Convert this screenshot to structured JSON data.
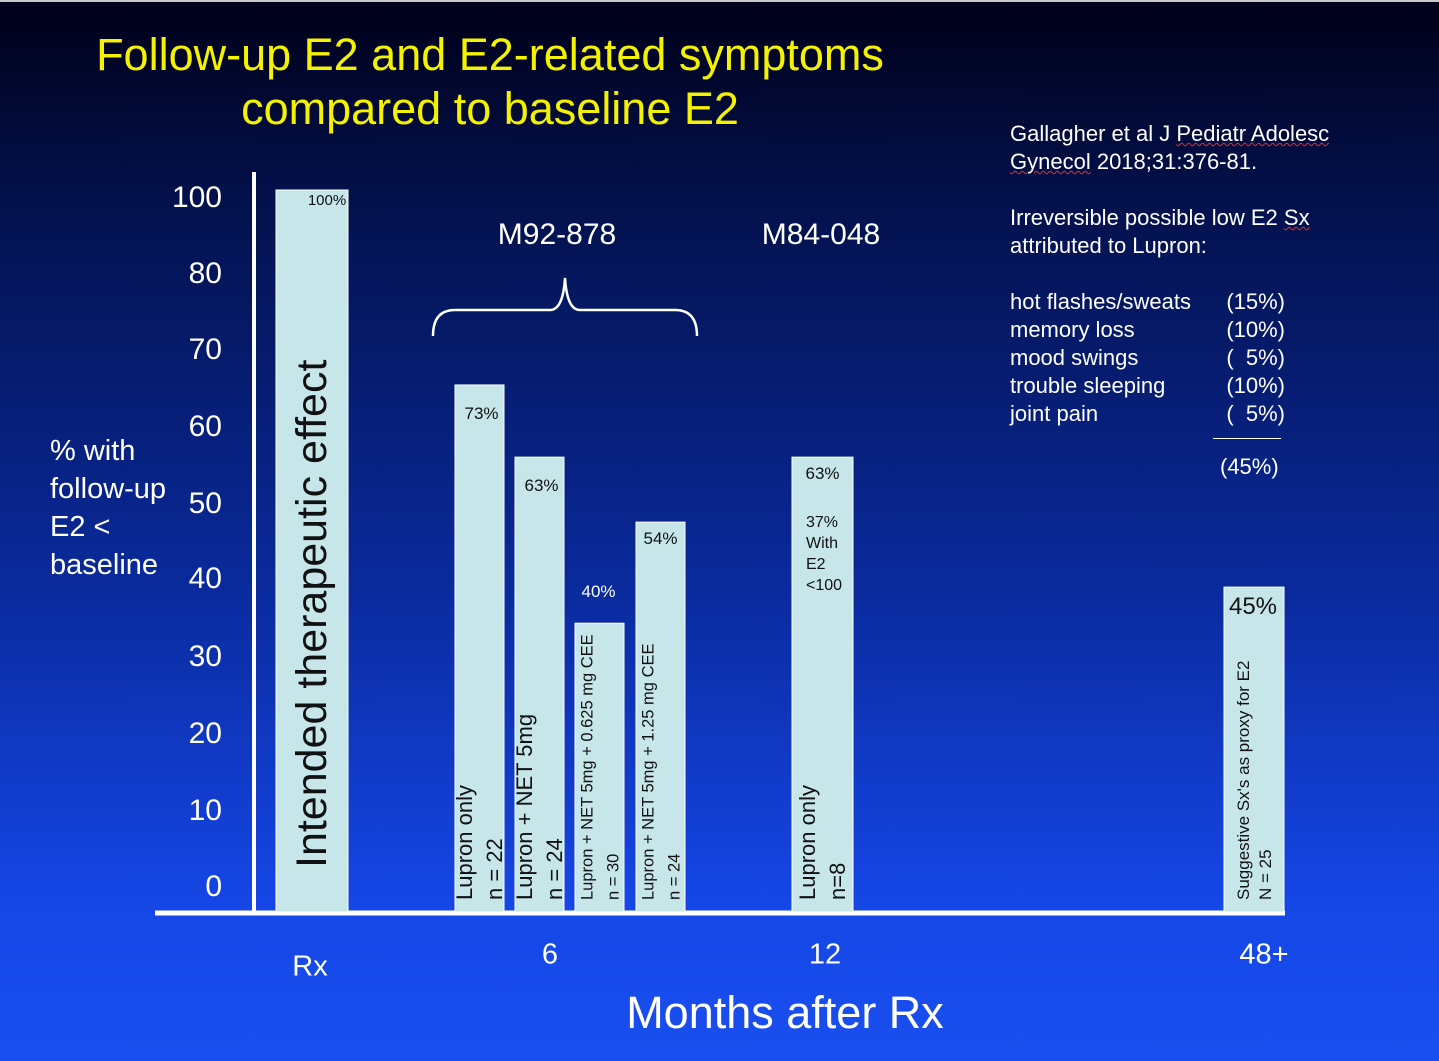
{
  "title_line1": "Follow-up E2 and E2-related symptoms",
  "title_line2": "compared to baseline E2",
  "reference": {
    "line1_pre": "Gallagher et al J ",
    "line1_wavy": "Pediatr Adolesc",
    "line2_wavy": "Gynecol",
    "line2_post": " 2018;31:376-81.",
    "line3_pre": "Irreversible possible low E2 ",
    "line3_wavy": "Sx",
    "line4": "attributed to Lupron:"
  },
  "symptoms": [
    {
      "name": "hot flashes/sweats",
      "pct": "(15%)"
    },
    {
      "name": "memory loss",
      "pct": "(10%)"
    },
    {
      "name": "mood swings",
      "pct": "(  5%)"
    },
    {
      "name": "trouble sleeping",
      "pct": "(10%)"
    },
    {
      "name": "joint pain",
      "pct": "(  5%)"
    }
  ],
  "symptoms_total": "(45%)",
  "ylabel": "% with follow-up E2 < baseline",
  "xlabel": "Months after Rx",
  "colors": {
    "title": "#f5f200",
    "bar_fill": "#c7e6ea",
    "text": "#ffffff",
    "bar_text": "#111111"
  },
  "chart_data": {
    "type": "bar",
    "ylabel": "% with follow-up E2 < baseline",
    "xlabel": "Months after Rx",
    "yticks": [
      0,
      10,
      20,
      30,
      40,
      50,
      60,
      70,
      80,
      100
    ],
    "xticks": [
      "Rx",
      "6",
      "12",
      "48+"
    ],
    "group_labels": [
      "M92-878",
      "M84-048"
    ],
    "bars": [
      {
        "x": "Rx",
        "value": 100,
        "data_label": "100%",
        "vertical_label": [
          "Intended therapeutic effect"
        ]
      },
      {
        "x": "6",
        "value": 73,
        "data_label": "73%",
        "vertical_label": [
          "Lupron only",
          "n = 22"
        ]
      },
      {
        "x": "6",
        "value": 63,
        "data_label": "63%",
        "vertical_label": [
          "Lupron + NET 5mg",
          "n = 24"
        ]
      },
      {
        "x": "6",
        "value": 40,
        "data_label": "40%",
        "vertical_label": [
          "Lupron + NET 5mg + 0.625 mg CEE",
          "n = 30"
        ]
      },
      {
        "x": "6",
        "value": 54,
        "data_label": "54%",
        "vertical_label": [
          "Lupron + NET 5mg + 1.25 mg CEE",
          "n = 24"
        ]
      },
      {
        "x": "12",
        "value": 63,
        "data_label": "63%",
        "note": [
          "37%",
          "With",
          "E2",
          "<100"
        ],
        "vertical_label": [
          "Lupron only",
          "n=8"
        ]
      },
      {
        "x": "48+",
        "value": 45,
        "data_label": "45%",
        "vertical_label": [
          "Suggestive Sx's as proxy for E2",
          "N = 25"
        ]
      }
    ]
  }
}
